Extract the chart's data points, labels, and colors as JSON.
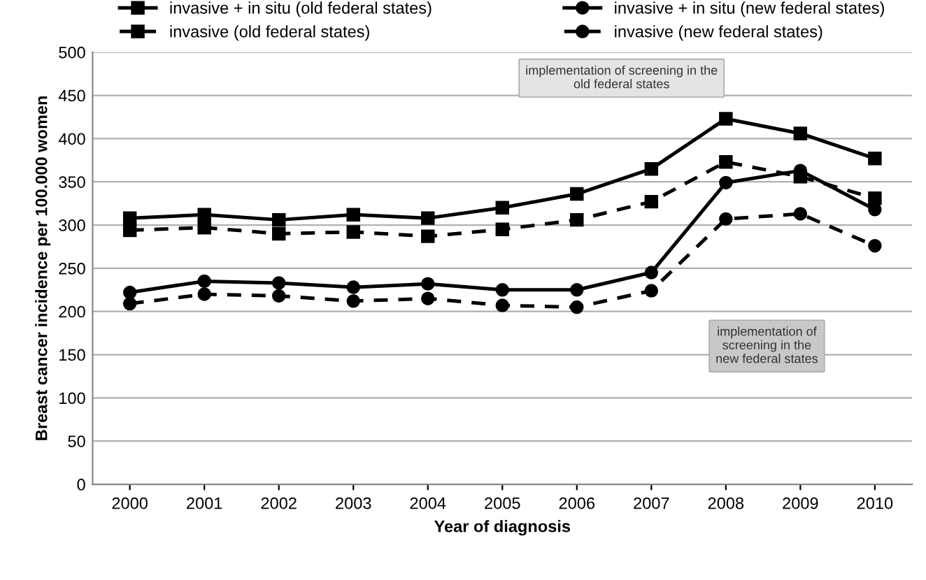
{
  "chart_data": {
    "type": "line",
    "xlabel": "Year of diagnosis",
    "ylabel": "Breast cancer incidence per 100.000 women",
    "categories": [
      "2000",
      "2001",
      "2002",
      "2003",
      "2004",
      "2005",
      "2006",
      "2007",
      "2008",
      "2009",
      "2010"
    ],
    "series": [
      {
        "name": "invasive + in situ (old federal states)",
        "color": "#000000",
        "marker": "square",
        "line_style": "solid",
        "values": [
          308,
          312,
          306,
          312,
          308,
          320,
          336,
          365,
          423,
          406,
          377
        ]
      },
      {
        "name": "invasive + in situ (new federal states)",
        "color": "#000000",
        "marker": "circle",
        "line_style": "solid",
        "values": [
          222,
          235,
          233,
          228,
          232,
          225,
          225,
          245,
          349,
          363,
          318
        ]
      },
      {
        "name": "invasive (old federal states)",
        "color": "#000000",
        "marker": "square",
        "line_style": "dashed",
        "values": [
          294,
          297,
          290,
          292,
          287,
          295,
          306,
          327,
          373,
          356,
          331
        ]
      },
      {
        "name": "invasive (new federal states)",
        "color": "#000000",
        "marker": "circle",
        "line_style": "dashed",
        "values": [
          209,
          220,
          218,
          212,
          215,
          207,
          205,
          224,
          307,
          313,
          276
        ]
      }
    ],
    "ylim": [
      0,
      500
    ],
    "yticks": [
      0,
      50,
      100,
      150,
      200,
      250,
      300,
      350,
      400,
      450,
      500
    ],
    "grid": "y",
    "legend": "top",
    "annotations": [
      "implementation of screening in the\nold federal states",
      "implementation of\nscreening in the\nnew federal states"
    ]
  }
}
